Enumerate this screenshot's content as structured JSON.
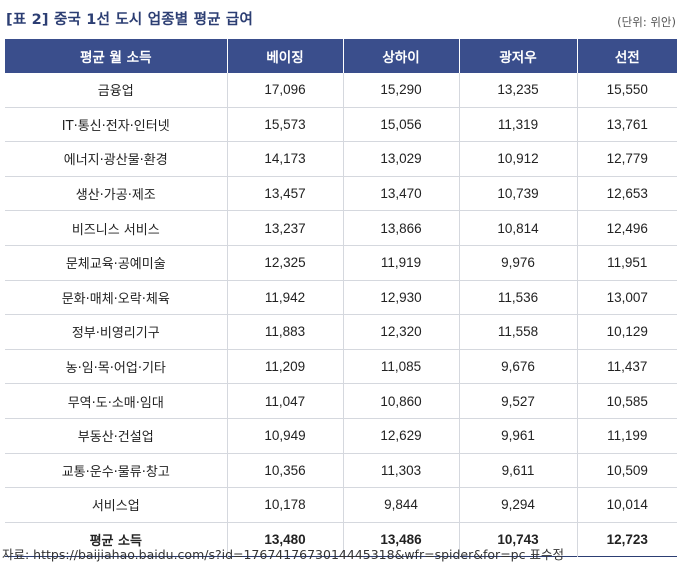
{
  "title": "[표 2] 중국 1선 도시 업종별 평균 급여",
  "unit": "(단위: 위안)",
  "table": {
    "headers": [
      "평균 월 소득",
      "베이징",
      "상하이",
      "광저우",
      "선전"
    ],
    "rows": [
      [
        "금융업",
        "17,096",
        "15,290",
        "13,235",
        "15,550"
      ],
      [
        "IT·통신·전자·인터넷",
        "15,573",
        "15,056",
        "11,319",
        "13,761"
      ],
      [
        "에너지·광산물·환경",
        "14,173",
        "13,029",
        "10,912",
        "12,779"
      ],
      [
        "생산·가공·제조",
        "13,457",
        "13,470",
        "10,739",
        "12,653"
      ],
      [
        "비즈니스 서비스",
        "13,237",
        "13,866",
        "10,814",
        "12,496"
      ],
      [
        "문체교육·공예미술",
        "12,325",
        "11,919",
        "9,976",
        "11,951"
      ],
      [
        "문화·매체·오락·체육",
        "11,942",
        "12,930",
        "11,536",
        "13,007"
      ],
      [
        "정부·비영리기구",
        "11,883",
        "12,320",
        "11,558",
        "10,129"
      ],
      [
        "농·임·목·어업·기타",
        "11,209",
        "11,085",
        "9,676",
        "11,437"
      ],
      [
        "무역·도·소매·임대",
        "11,047",
        "10,860",
        "9,527",
        "10,585"
      ],
      [
        "부동산·건설업",
        "10,949",
        "12,629",
        "9,961",
        "11,199"
      ],
      [
        "교통·운수·물류·창고",
        "10,356",
        "11,303",
        "9,611",
        "10,509"
      ],
      [
        "서비스업",
        "10,178",
        "9,844",
        "9,294",
        "10,014"
      ]
    ],
    "average_row": [
      "평균 소득",
      "13,480",
      "13,486",
      "10,743",
      "12,723"
    ]
  },
  "source": "자료:  https://baijiahao.baidu.com/s?id=1767417673014445318&wfr=spider&for=pc 표수정",
  "colors": {
    "header_bg": "#3a4e8c",
    "title": "#2c3e73"
  }
}
